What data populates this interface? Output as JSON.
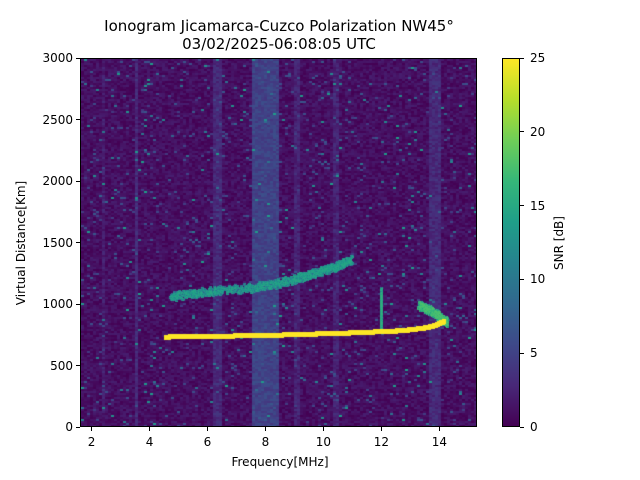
{
  "chart_data": {
    "type": "heatmap",
    "title": "Ionogram Jicamarca-Cuzco Polarization NW45°",
    "subtitle": "03/02/2025-06:08:05 UTC",
    "xlabel": "Frequency[MHz]",
    "ylabel": "Virtual Distance[Km]",
    "xlim": [
      1.6,
      15.3
    ],
    "ylim": [
      0,
      3000
    ],
    "xticks": [
      2,
      4,
      6,
      8,
      10,
      12,
      14
    ],
    "yticks": [
      0,
      500,
      1000,
      1500,
      2000,
      2500,
      3000
    ],
    "grid": false,
    "colorbar": {
      "label": "SNR [dB]",
      "colormap": "viridis",
      "range": [
        0,
        25
      ],
      "ticks": [
        0,
        5,
        10,
        15,
        20,
        25
      ]
    },
    "background_snr_db": 1,
    "interference_bands": [
      {
        "f_start": 7.55,
        "f_end": 8.45,
        "snr_db": 5
      },
      {
        "f_start": 6.2,
        "f_end": 6.5,
        "snr_db": 3
      },
      {
        "f_start": 9.0,
        "f_end": 9.2,
        "snr_db": 2.5
      },
      {
        "f_start": 10.3,
        "f_end": 10.55,
        "snr_db": 2.5
      },
      {
        "f_start": 13.7,
        "f_end": 14.1,
        "snr_db": 3
      },
      {
        "f_start": 3.5,
        "f_end": 3.6,
        "snr_db": 3
      },
      {
        "f_start": 2.3,
        "f_end": 2.4,
        "snr_db": 2
      }
    ],
    "series": [
      {
        "name": "Primary trace (strong, 1-hop)",
        "snr_db": 25,
        "x": [
          4.5,
          5.0,
          6.0,
          7.0,
          8.0,
          9.0,
          10.0,
          11.0,
          12.0,
          12.5,
          13.0,
          13.5,
          13.8,
          14.0,
          14.2
        ],
        "y": [
          730,
          735,
          738,
          740,
          745,
          750,
          758,
          765,
          775,
          780,
          790,
          805,
          820,
          840,
          860
        ]
      },
      {
        "name": "Secondary trace (weak, 2-hop)",
        "snr_db": 15,
        "x": [
          4.7,
          5.5,
          6.5,
          7.5,
          8.3,
          9.0,
          9.5,
          10.0,
          10.5,
          11.0
        ],
        "y": [
          1060,
          1085,
          1110,
          1130,
          1160,
          1200,
          1240,
          1270,
          1310,
          1360
        ]
      },
      {
        "name": "Upper branch near 13.3-14 MHz",
        "snr_db": 18,
        "x": [
          13.3,
          13.6,
          13.9,
          14.1,
          14.3
        ],
        "y": [
          990,
          960,
          920,
          880,
          850
        ]
      },
      {
        "name": "Vertical spike at 12 MHz",
        "snr_db": 16,
        "x": [
          12.0,
          12.0,
          12.0
        ],
        "y": [
          780,
          950,
          1110
        ]
      }
    ]
  }
}
